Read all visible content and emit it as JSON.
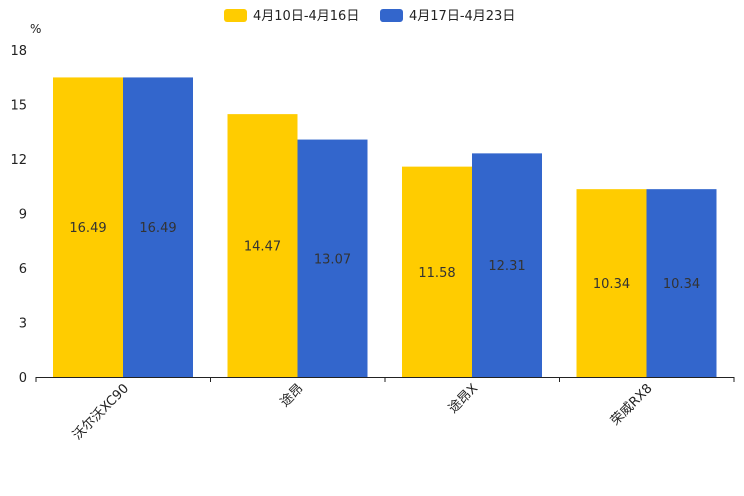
{
  "chart_data": {
    "type": "bar",
    "title": "",
    "unit": "%",
    "xlabel": "",
    "ylabel": "",
    "ylim": [
      0,
      18
    ],
    "yticks": [
      0,
      3,
      6,
      9,
      12,
      15,
      18
    ],
    "categories": [
      "沃尔沃XC90",
      "途昂",
      "途昂X",
      "荣威RX8"
    ],
    "series": [
      {
        "name": "4月10日-4月16日",
        "color": "#FFCC00",
        "values": [
          16.49,
          14.47,
          11.58,
          10.34
        ]
      },
      {
        "name": "4月17日-4月23日",
        "color": "#3366CC",
        "values": [
          16.49,
          13.07,
          12.31,
          10.34
        ]
      }
    ],
    "legend_position": "top-center",
    "grid": false
  }
}
